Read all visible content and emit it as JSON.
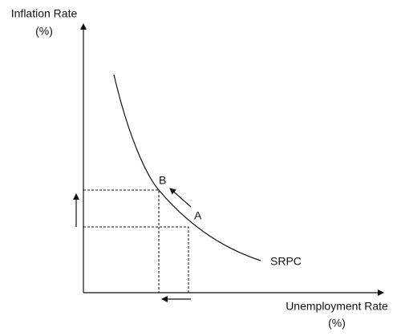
{
  "y_axis": {
    "label_lines": [
      "Inflation Rate",
      "(%)"
    ]
  },
  "x_axis": {
    "label_lines": [
      "Unemployment Rate",
      "(%)"
    ]
  },
  "points": [
    {
      "label": "A"
    },
    {
      "label": "B"
    }
  ],
  "curve": {
    "label": "SRPC"
  }
}
